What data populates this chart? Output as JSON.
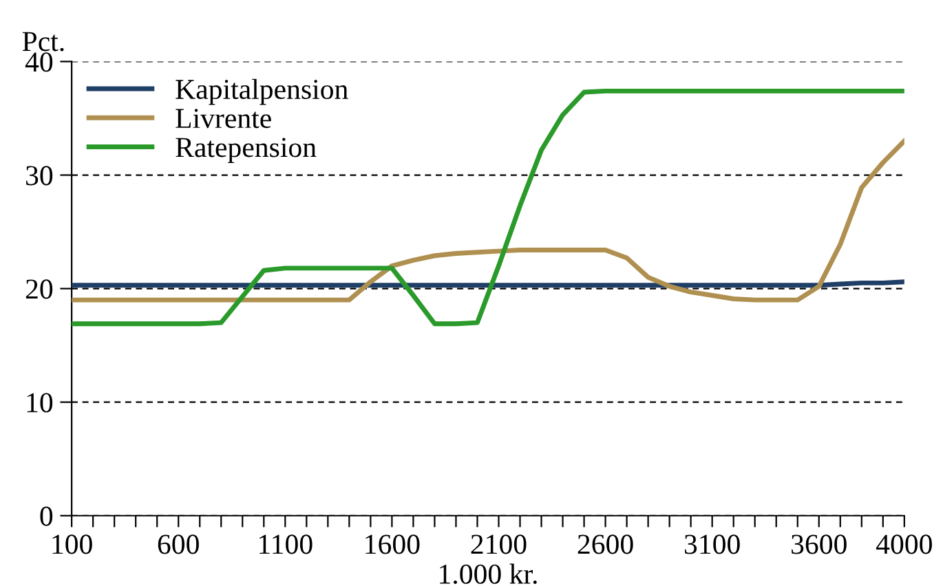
{
  "chart_data": {
    "type": "line",
    "ylabel": "Pct.",
    "xlabel": "1.000 kr.",
    "x": [
      100,
      200,
      300,
      400,
      500,
      600,
      700,
      800,
      900,
      1000,
      1100,
      1200,
      1300,
      1400,
      1500,
      1600,
      1700,
      1800,
      1900,
      2000,
      2100,
      2200,
      2300,
      2400,
      2500,
      2600,
      2700,
      2800,
      2900,
      3000,
      3100,
      3200,
      3300,
      3400,
      3500,
      3600,
      3700,
      3800,
      3900,
      4000
    ],
    "series": [
      {
        "name": "Kapitalpension",
        "color": "#1f3f66",
        "values": [
          20.3,
          20.3,
          20.3,
          20.3,
          20.3,
          20.3,
          20.3,
          20.3,
          20.3,
          20.3,
          20.3,
          20.3,
          20.3,
          20.3,
          20.3,
          20.3,
          20.3,
          20.3,
          20.3,
          20.3,
          20.3,
          20.3,
          20.3,
          20.3,
          20.3,
          20.3,
          20.3,
          20.3,
          20.3,
          20.3,
          20.3,
          20.3,
          20.3,
          20.3,
          20.3,
          20.3,
          20.4,
          20.5,
          20.5,
          20.6
        ]
      },
      {
        "name": "Livrente",
        "color": "#b09050",
        "values": [
          19.0,
          19.0,
          19.0,
          19.0,
          19.0,
          19.0,
          19.0,
          19.0,
          19.0,
          19.0,
          19.0,
          19.0,
          19.0,
          19.0,
          20.6,
          22.0,
          22.5,
          22.9,
          23.1,
          23.2,
          23.3,
          23.4,
          23.4,
          23.4,
          23.4,
          23.4,
          22.7,
          21.0,
          20.2,
          19.7,
          19.4,
          19.1,
          19.0,
          19.0,
          19.0,
          20.2,
          23.9,
          28.9,
          31.1,
          33.0
        ]
      },
      {
        "name": "Ratepension",
        "color": "#2a9a2a",
        "values": [
          16.9,
          16.9,
          16.9,
          16.9,
          16.9,
          16.9,
          16.9,
          17.0,
          19.3,
          21.6,
          21.8,
          21.8,
          21.8,
          21.8,
          21.8,
          21.8,
          19.4,
          16.9,
          16.9,
          17.0,
          22.0,
          27.3,
          32.2,
          35.3,
          37.3,
          37.4,
          37.4,
          37.4,
          37.4,
          37.4,
          37.4,
          37.4,
          37.4,
          37.4,
          37.4,
          37.4,
          37.4,
          37.4,
          37.4,
          37.4
        ]
      }
    ],
    "xlim": [
      100,
      4000
    ],
    "ylim": [
      0,
      40
    ],
    "yticks": [
      0,
      10,
      20,
      30,
      40
    ],
    "xticks": [
      100,
      {
        "value": 200,
        "label": null
      },
      {
        "value": 300,
        "label": null
      },
      {
        "value": 400,
        "label": null
      },
      {
        "value": 500,
        "label": null
      },
      600,
      {
        "value": 700,
        "label": null
      },
      {
        "value": 800,
        "label": null
      },
      {
        "value": 900,
        "label": null
      },
      {
        "value": 1000,
        "label": null
      },
      1100,
      {
        "value": 1200,
        "label": null
      },
      {
        "value": 1300,
        "label": null
      },
      {
        "value": 1400,
        "label": null
      },
      {
        "value": 1500,
        "label": null
      },
      1600,
      {
        "value": 1700,
        "label": null
      },
      {
        "value": 1800,
        "label": null
      },
      {
        "value": 1900,
        "label": null
      },
      {
        "value": 2000,
        "label": null
      },
      2100,
      {
        "value": 2200,
        "label": null
      },
      {
        "value": 2300,
        "label": null
      },
      {
        "value": 2400,
        "label": null
      },
      {
        "value": 2500,
        "label": null
      },
      2600,
      {
        "value": 2700,
        "label": null
      },
      {
        "value": 2800,
        "label": null
      },
      {
        "value": 2900,
        "label": null
      },
      {
        "value": 3000,
        "label": null
      },
      3100,
      {
        "value": 3200,
        "label": null
      },
      {
        "value": 3300,
        "label": null
      },
      {
        "value": 3400,
        "label": null
      },
      {
        "value": 3500,
        "label": null
      },
      3600,
      {
        "value": 3700,
        "label": null
      },
      {
        "value": 3800,
        "label": null
      },
      {
        "value": 3900,
        "label": null
      },
      4000
    ],
    "grid": "y",
    "legend": "top left",
    "marker": "none",
    "line_style": "solid"
  }
}
